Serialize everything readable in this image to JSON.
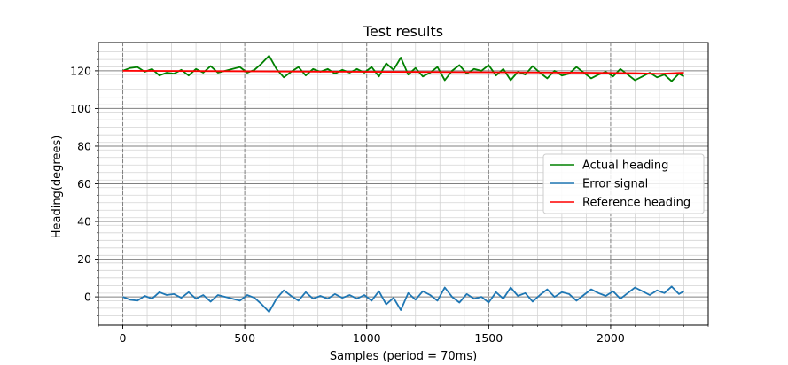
{
  "chart_data": {
    "type": "line",
    "title": "Test results",
    "xlabel": "Samples (period = 70ms)",
    "ylabel": "Heading(degrees)",
    "xlim": [
      -100,
      2400
    ],
    "ylim": [
      -15,
      135
    ],
    "xticks": [
      0,
      500,
      1000,
      1500,
      2000
    ],
    "xtick_labels": [
      "0",
      "500",
      "1000",
      "1500",
      "2000"
    ],
    "yticks": [
      0,
      20,
      40,
      60,
      80,
      100,
      120
    ],
    "ytick_labels": [
      "0",
      "20",
      "40",
      "60",
      "80",
      "100",
      "120"
    ],
    "grid": "major and minor",
    "legend_position": "center-right",
    "series": [
      {
        "name": "Actual heading",
        "color": "#008000",
        "x": [
          0,
          30,
          60,
          90,
          120,
          150,
          180,
          210,
          240,
          270,
          300,
          330,
          360,
          390,
          420,
          450,
          480,
          510,
          540,
          570,
          600,
          630,
          660,
          690,
          720,
          750,
          780,
          810,
          840,
          870,
          900,
          930,
          960,
          990,
          1020,
          1050,
          1080,
          1110,
          1140,
          1170,
          1200,
          1230,
          1260,
          1290,
          1320,
          1350,
          1380,
          1410,
          1440,
          1470,
          1500,
          1530,
          1560,
          1590,
          1620,
          1650,
          1680,
          1710,
          1740,
          1770,
          1800,
          1830,
          1860,
          1890,
          1920,
          1950,
          1980,
          2010,
          2040,
          2070,
          2100,
          2130,
          2160,
          2190,
          2220,
          2250,
          2280,
          2300
        ],
        "values": [
          120,
          121.5,
          122,
          119.5,
          121,
          117.5,
          119,
          118.5,
          120.5,
          117.5,
          121,
          119,
          122.5,
          119,
          120,
          121,
          122,
          119,
          120.5,
          124,
          128,
          121,
          116.5,
          119.5,
          122,
          117.5,
          121,
          119.5,
          121,
          118.5,
          120.5,
          119,
          121,
          119,
          122,
          117,
          124,
          120.5,
          127,
          118,
          121.5,
          117,
          119,
          122,
          115,
          120,
          123,
          118.5,
          121,
          120,
          123,
          117.5,
          121,
          115,
          119.5,
          118,
          122.5,
          119,
          116,
          120,
          117.5,
          118.5,
          122,
          119,
          116,
          118,
          119.5,
          117,
          121,
          118,
          115,
          117,
          119,
          116.5,
          118,
          114.5,
          118.5,
          117
        ]
      },
      {
        "name": "Error signal",
        "color": "#1f77b4",
        "x": [
          0,
          30,
          60,
          90,
          120,
          150,
          180,
          210,
          240,
          270,
          300,
          330,
          360,
          390,
          420,
          450,
          480,
          510,
          540,
          570,
          600,
          630,
          660,
          690,
          720,
          750,
          780,
          810,
          840,
          870,
          900,
          930,
          960,
          990,
          1020,
          1050,
          1080,
          1110,
          1140,
          1170,
          1200,
          1230,
          1260,
          1290,
          1320,
          1350,
          1380,
          1410,
          1440,
          1470,
          1500,
          1530,
          1560,
          1590,
          1620,
          1650,
          1680,
          1710,
          1740,
          1770,
          1800,
          1830,
          1860,
          1890,
          1920,
          1950,
          1980,
          2010,
          2040,
          2070,
          2100,
          2130,
          2160,
          2190,
          2220,
          2250,
          2280,
          2300
        ],
        "values": [
          0,
          -1.5,
          -2,
          0.5,
          -1,
          2.5,
          1,
          1.5,
          -0.5,
          2.5,
          -1,
          1,
          -2.5,
          1,
          0,
          -1,
          -2,
          1,
          -0.5,
          -4,
          -8,
          -1,
          3.5,
          0.5,
          -2,
          2.5,
          -1,
          0.5,
          -1,
          1.5,
          -0.5,
          1,
          -1,
          1,
          -2,
          3,
          -4,
          -0.5,
          -7,
          2,
          -1.5,
          3,
          1,
          -2,
          5,
          0,
          -3,
          1.5,
          -1,
          0,
          -3,
          2.5,
          -1,
          5,
          0.5,
          2,
          -2.5,
          1,
          4,
          0,
          2.5,
          1.5,
          -2,
          1,
          4,
          2,
          0.5,
          3,
          -1,
          2,
          5,
          3,
          1,
          3.5,
          2,
          5.5,
          1.5,
          3
        ]
      },
      {
        "name": "Reference heading",
        "color": "#ff0000",
        "x": [
          0,
          400,
          800,
          1200,
          1600,
          1900,
          2100,
          2200,
          2300
        ],
        "values": [
          120,
          119.8,
          119.6,
          119.4,
          119.2,
          119,
          118.8,
          118.4,
          119
        ]
      }
    ]
  }
}
